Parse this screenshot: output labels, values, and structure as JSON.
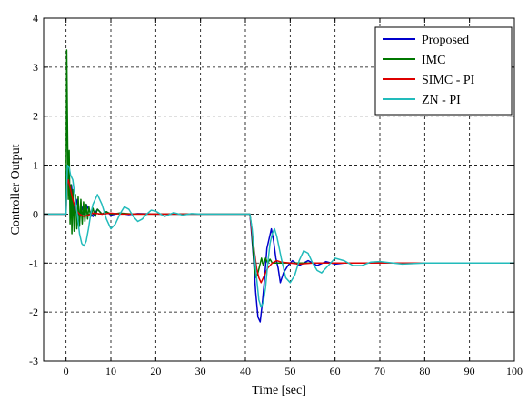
{
  "chart_data": {
    "type": "line",
    "xlabel": "Time [sec]",
    "ylabel": "Controller Output",
    "xlim": [
      -5,
      100
    ],
    "ylim": [
      -3,
      4
    ],
    "xticks": [
      0,
      10,
      20,
      30,
      40,
      50,
      60,
      70,
      80,
      90,
      100
    ],
    "yticks": [
      -3,
      -2,
      -1,
      0,
      1,
      2,
      3,
      4
    ],
    "grid": true,
    "legend_position": "top-right",
    "series": [
      {
        "name": "Proposed",
        "color": "#0000cc",
        "x": [
          -5,
          0,
          0.1,
          0.4,
          0.8,
          1.2,
          1.6,
          2.0,
          2.5,
          3.0,
          3.5,
          4.0,
          4.5,
          5.0,
          6.0,
          7.0,
          8.0,
          9.0,
          10.0,
          12.0,
          14.0,
          16.0,
          20.0,
          30.0,
          41.0,
          41.3,
          41.8,
          42.3,
          42.8,
          43.3,
          43.8,
          44.3,
          44.8,
          45.3,
          45.8,
          46.3,
          46.8,
          47.3,
          47.8,
          48.5,
          49.5,
          50.5,
          52.0,
          54.0,
          56.0,
          58.0,
          60.0,
          62.0,
          65.0,
          70.0,
          80.0,
          100.0
        ],
        "y": [
          0,
          0,
          0.9,
          0.7,
          0.45,
          0.6,
          0.2,
          0.05,
          0.3,
          -0.1,
          0.15,
          0.0,
          0.2,
          0.1,
          -0.05,
          0.1,
          0.0,
          0.05,
          -0.02,
          0.02,
          -0.01,
          0.01,
          0.0,
          0.0,
          0.0,
          -0.3,
          -0.9,
          -1.6,
          -2.1,
          -2.2,
          -1.8,
          -1.3,
          -0.7,
          -0.5,
          -0.3,
          -0.55,
          -0.9,
          -1.1,
          -1.4,
          -1.2,
          -1.05,
          -0.95,
          -1.05,
          -0.95,
          -1.05,
          -0.97,
          -1.02,
          -1.0,
          -1.0,
          -1.0,
          -1.0,
          -1.0
        ]
      },
      {
        "name": "IMC",
        "color": "#007700",
        "x": [
          -5,
          0,
          0.15,
          0.3,
          0.5,
          0.7,
          0.9,
          1.1,
          1.3,
          1.5,
          1.8,
          2.1,
          2.4,
          2.7,
          3.0,
          3.3,
          3.6,
          3.9,
          4.2,
          4.5,
          4.8,
          5.1,
          5.5,
          6.0,
          6.5,
          7.0,
          8.0,
          9.0,
          10.0,
          12.0,
          15.0,
          20.0,
          30.0,
          41.0,
          41.3,
          41.7,
          42.0,
          42.4,
          42.8,
          43.2,
          43.6,
          44.0,
          44.5,
          45.0,
          45.5,
          46.0,
          47.0,
          48.0,
          50.0,
          55.0,
          60.0,
          70.0,
          100.0
        ],
        "y": [
          0,
          0,
          3.35,
          2.0,
          0.3,
          1.3,
          -0.2,
          0.6,
          -0.4,
          0.5,
          -0.35,
          0.4,
          -0.3,
          0.35,
          -0.25,
          0.3,
          -0.2,
          0.25,
          -0.15,
          0.2,
          -0.1,
          0.15,
          -0.05,
          0.12,
          -0.05,
          0.1,
          0.0,
          0.05,
          0.0,
          0.02,
          0.0,
          0.0,
          0.0,
          0.0,
          -0.2,
          -0.7,
          -1.1,
          -1.3,
          -1.2,
          -1.05,
          -0.9,
          -1.05,
          -0.9,
          -1.0,
          -0.92,
          -1.0,
          -1.0,
          -1.0,
          -1.0,
          -1.0,
          -1.0,
          -1.0,
          -1.0
        ]
      },
      {
        "name": "SIMC - PI",
        "color": "#dd0000",
        "x": [
          -5,
          0,
          0.2,
          0.5,
          1.0,
          1.5,
          2.0,
          2.5,
          3.0,
          4.0,
          5.0,
          6.0,
          8.0,
          10.0,
          12.0,
          15.0,
          20.0,
          30.0,
          41.0,
          41.5,
          42.0,
          42.5,
          43.0,
          43.5,
          44.0,
          44.5,
          45.0,
          46.0,
          47.0,
          48.0,
          50.0,
          52.0,
          55.0,
          60.0,
          70.0,
          100.0
        ],
        "y": [
          0,
          0,
          0.6,
          0.7,
          0.5,
          0.3,
          0.15,
          0.05,
          0.0,
          -0.05,
          -0.02,
          0.02,
          0.0,
          0.02,
          0.0,
          0.0,
          0.0,
          0.0,
          0.0,
          -0.4,
          -0.75,
          -1.1,
          -1.3,
          -1.4,
          -1.3,
          -1.2,
          -1.1,
          -1.0,
          -0.95,
          -0.98,
          -1.0,
          -1.02,
          -1.0,
          -1.0,
          -1.0,
          -1.0
        ]
      },
      {
        "name": "ZN - PI",
        "color": "#22bbbb",
        "x": [
          -5,
          0,
          0.3,
          0.7,
          1.0,
          1.5,
          2.0,
          2.5,
          3.0,
          3.5,
          4.0,
          4.5,
          5.0,
          5.5,
          6.0,
          7.0,
          8.0,
          9.0,
          10.0,
          11.0,
          12.0,
          13.0,
          14.0,
          15.0,
          16.0,
          17.0,
          18.0,
          19.0,
          20.0,
          22.0,
          24.0,
          26.0,
          28.0,
          30.0,
          35.0,
          41.0,
          41.5,
          42.0,
          42.5,
          43.0,
          43.5,
          44.0,
          44.5,
          45.0,
          45.5,
          46.0,
          46.5,
          47.0,
          48.0,
          49.0,
          50.0,
          51.0,
          52.0,
          53.0,
          54.0,
          55.0,
          56.0,
          57.0,
          58.0,
          60.0,
          62.0,
          64.0,
          66.0,
          68.0,
          70.0,
          75.0,
          80.0,
          100.0
        ],
        "y": [
          0,
          0,
          1.0,
          0.95,
          0.8,
          0.7,
          0.35,
          0.0,
          -0.4,
          -0.6,
          -0.65,
          -0.55,
          -0.3,
          0.0,
          0.2,
          0.4,
          0.2,
          -0.1,
          -0.3,
          -0.2,
          0.0,
          0.15,
          0.1,
          -0.05,
          -0.15,
          -0.1,
          0.0,
          0.08,
          0.06,
          -0.05,
          0.03,
          -0.02,
          0.01,
          0.0,
          0.0,
          0.0,
          -0.3,
          -0.8,
          -1.3,
          -1.75,
          -1.9,
          -1.8,
          -1.5,
          -1.0,
          -0.6,
          -0.4,
          -0.3,
          -0.45,
          -0.9,
          -1.3,
          -1.4,
          -1.25,
          -0.95,
          -0.75,
          -0.8,
          -1.0,
          -1.15,
          -1.2,
          -1.1,
          -0.9,
          -0.95,
          -1.05,
          -1.05,
          -0.98,
          -0.97,
          -1.02,
          -1.0,
          -1.0
        ]
      }
    ]
  }
}
